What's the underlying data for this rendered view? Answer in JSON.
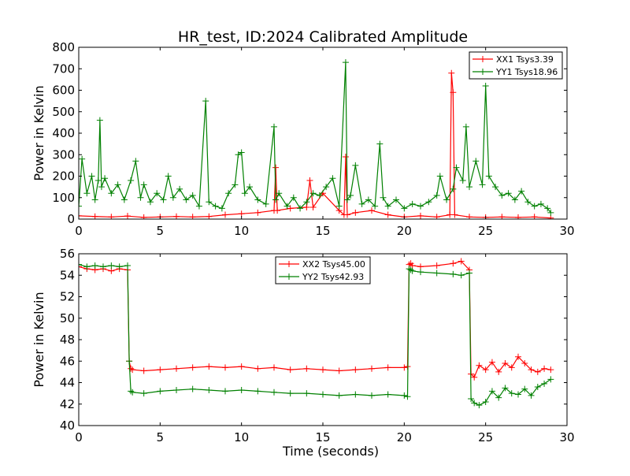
{
  "figure": {
    "title": "HR_test, ID:2024 Calibrated Amplitude"
  },
  "chart_data": [
    {
      "type": "line",
      "title": "HR_test, ID:2024 Calibrated Amplitude",
      "xlabel": "",
      "ylabel": "Power in Kelvin",
      "xlim": [
        0,
        30
      ],
      "ylim": [
        0,
        800
      ],
      "xticks": [
        0,
        5,
        10,
        15,
        20,
        25,
        30
      ],
      "yticks": [
        0,
        100,
        200,
        300,
        400,
        500,
        600,
        700,
        800
      ],
      "legend_position": "top-right",
      "grid": false,
      "marker": "+",
      "series": [
        {
          "name": "XX1 Tsys3.39",
          "color": "#ff0000",
          "x": [
            0,
            1,
            2,
            3,
            4,
            5,
            6,
            7,
            8,
            9,
            10,
            11,
            12,
            12.1,
            12.2,
            13,
            14,
            14.2,
            14.4,
            15,
            16,
            16.3,
            16.4,
            16.5,
            17,
            18,
            19,
            20,
            21,
            22,
            22.8,
            22.9,
            23.0,
            23.1,
            24,
            25,
            26,
            27,
            28,
            29
          ],
          "values": [
            15,
            12,
            10,
            14,
            8,
            10,
            12,
            10,
            12,
            20,
            25,
            30,
            40,
            240,
            40,
            50,
            55,
            180,
            55,
            120,
            40,
            20,
            290,
            20,
            30,
            40,
            20,
            10,
            15,
            10,
            20,
            680,
            590,
            20,
            10,
            8,
            10,
            8,
            10,
            5
          ]
        },
        {
          "name": "YY1 Tsys18.96",
          "color": "#008000",
          "x": [
            0,
            0.2,
            0.5,
            0.8,
            1.0,
            1.2,
            1.3,
            1.4,
            1.6,
            2.0,
            2.4,
            2.8,
            3.2,
            3.5,
            3.8,
            4.0,
            4.4,
            4.8,
            5.2,
            5.5,
            5.8,
            6.2,
            6.6,
            7.0,
            7.4,
            7.8,
            8.0,
            8.4,
            8.8,
            9.2,
            9.6,
            9.8,
            10.0,
            10.2,
            10.5,
            11.0,
            11.5,
            12.0,
            12.1,
            12.3,
            12.8,
            13.2,
            13.6,
            14.0,
            14.4,
            14.8,
            15.2,
            15.6,
            16.0,
            16.4,
            16.5,
            16.7,
            17.0,
            17.4,
            17.8,
            18.2,
            18.5,
            18.7,
            19.0,
            19.5,
            20.0,
            20.5,
            21.0,
            21.5,
            22.0,
            22.2,
            22.6,
            23.0,
            23.2,
            23.6,
            23.8,
            24.0,
            24.4,
            24.8,
            25.0,
            25.2,
            25.6,
            26.0,
            26.4,
            26.8,
            27.2,
            27.6,
            28.0,
            28.4,
            28.8,
            29.0
          ],
          "values": [
            60,
            280,
            120,
            200,
            90,
            180,
            460,
            150,
            190,
            120,
            160,
            90,
            180,
            270,
            100,
            160,
            80,
            120,
            90,
            200,
            100,
            140,
            90,
            110,
            60,
            550,
            80,
            60,
            50,
            120,
            160,
            300,
            310,
            120,
            150,
            90,
            70,
            430,
            90,
            120,
            60,
            100,
            50,
            80,
            120,
            110,
            150,
            190,
            60,
            730,
            90,
            110,
            250,
            70,
            90,
            60,
            350,
            100,
            60,
            90,
            50,
            70,
            60,
            80,
            110,
            200,
            90,
            140,
            240,
            180,
            430,
            150,
            270,
            160,
            620,
            200,
            150,
            110,
            120,
            90,
            130,
            80,
            60,
            70,
            50,
            30
          ]
        }
      ]
    },
    {
      "type": "line",
      "title": "",
      "xlabel": "Time (seconds)",
      "ylabel": "Power in Kelvin",
      "xlim": [
        0,
        30
      ],
      "ylim": [
        40,
        56
      ],
      "xticks": [
        0,
        5,
        10,
        15,
        20,
        25,
        30
      ],
      "yticks": [
        40,
        42,
        44,
        46,
        48,
        50,
        52,
        54,
        56
      ],
      "legend_position": "top-center",
      "grid": false,
      "marker": "+",
      "series": [
        {
          "name": "XX2 Tsys45.00",
          "color": "#ff0000",
          "x": [
            0,
            0.5,
            1,
            1.5,
            2,
            2.5,
            3.0,
            3.1,
            3.2,
            3.3,
            4,
            5,
            6,
            7,
            8,
            9,
            10,
            11,
            12,
            13,
            14,
            15,
            16,
            17,
            18,
            19,
            20,
            20.2,
            20.3,
            20.4,
            20.5,
            21,
            22,
            23,
            23.5,
            24.0,
            24.1,
            24.3,
            24.6,
            25.0,
            25.4,
            25.8,
            26.2,
            26.6,
            27.0,
            27.4,
            27.8,
            28.2,
            28.6,
            29.0
          ],
          "values": [
            54.8,
            54.6,
            54.5,
            54.6,
            54.4,
            54.6,
            54.5,
            46.0,
            45.3,
            45.2,
            45.1,
            45.2,
            45.3,
            45.4,
            45.5,
            45.4,
            45.5,
            45.3,
            45.4,
            45.2,
            45.3,
            45.2,
            45.1,
            45.2,
            45.3,
            45.4,
            45.4,
            45.5,
            55.0,
            55.1,
            54.9,
            54.8,
            54.9,
            55.1,
            55.3,
            54.5,
            44.8,
            44.5,
            45.6,
            45.2,
            45.9,
            45.0,
            45.8,
            45.4,
            46.4,
            45.8,
            45.2,
            45.0,
            45.3,
            45.2
          ]
        },
        {
          "name": "YY2 Tsys42.93",
          "color": "#008000",
          "x": [
            0,
            0.5,
            1,
            1.5,
            2,
            2.5,
            3.0,
            3.1,
            3.2,
            3.3,
            4,
            5,
            6,
            7,
            8,
            9,
            10,
            11,
            12,
            13,
            14,
            15,
            16,
            17,
            18,
            19,
            20,
            20.2,
            20.3,
            20.4,
            20.5,
            21,
            22,
            23,
            23.5,
            24.0,
            24.1,
            24.3,
            24.6,
            25.0,
            25.4,
            25.8,
            26.2,
            26.6,
            27.0,
            27.4,
            27.8,
            28.2,
            28.6,
            29.0
          ],
          "values": [
            55.0,
            54.8,
            54.9,
            54.8,
            54.9,
            54.8,
            54.9,
            46.0,
            43.2,
            43.1,
            43.0,
            43.2,
            43.3,
            43.4,
            43.3,
            43.2,
            43.3,
            43.2,
            43.1,
            43.0,
            43.0,
            42.9,
            42.8,
            42.9,
            42.8,
            42.9,
            42.8,
            42.7,
            54.6,
            54.5,
            54.4,
            54.3,
            54.2,
            54.1,
            54.0,
            54.2,
            42.5,
            42.1,
            41.9,
            42.2,
            43.2,
            42.6,
            43.5,
            43.0,
            42.9,
            43.4,
            42.8,
            43.6,
            43.9,
            44.3
          ]
        }
      ]
    }
  ]
}
